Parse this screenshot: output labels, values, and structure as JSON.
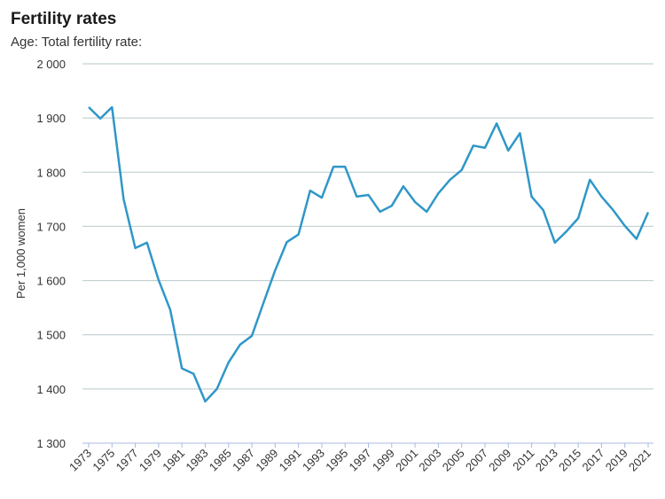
{
  "chart_data": {
    "type": "line",
    "title": "Fertility rates",
    "subtitle": "Age: Total fertility rate:",
    "y_label": "Per 1,000 women",
    "x": [
      1973,
      1974,
      1975,
      1976,
      1977,
      1978,
      1979,
      1980,
      1981,
      1982,
      1983,
      1984,
      1985,
      1986,
      1987,
      1988,
      1989,
      1990,
      1991,
      1992,
      1993,
      1994,
      1995,
      1996,
      1997,
      1998,
      1999,
      2000,
      2001,
      2002,
      2003,
      2004,
      2005,
      2006,
      2007,
      2008,
      2009,
      2010,
      2011,
      2012,
      2013,
      2014,
      2015,
      2016,
      2017,
      2018,
      2019,
      2020,
      2021
    ],
    "series": [
      {
        "name": "Total fertility rate",
        "color": "#2f97c8",
        "values": [
          1920,
          1899,
          1920,
          1750,
          1660,
          1670,
          1601,
          1546,
          1438,
          1428,
          1377,
          1400,
          1449,
          1482,
          1498,
          1559,
          1619,
          1671,
          1685,
          1766,
          1753,
          1810,
          1810,
          1755,
          1758,
          1727,
          1738,
          1774,
          1745,
          1727,
          1761,
          1786,
          1804,
          1849,
          1845,
          1890,
          1840,
          1872,
          1755,
          1730,
          1670,
          1691,
          1715,
          1786,
          1755,
          1730,
          1701,
          1677,
          1726
        ]
      }
    ],
    "xlim": [
      1973,
      2021
    ],
    "xticks": [
      1973,
      1975,
      1977,
      1979,
      1981,
      1983,
      1985,
      1987,
      1989,
      1991,
      1993,
      1995,
      1997,
      1999,
      2001,
      2003,
      2005,
      2007,
      2009,
      2011,
      2013,
      2015,
      2017,
      2019,
      2021
    ],
    "ylim": [
      1300,
      2000
    ],
    "yticks": [
      {
        "value": 1300,
        "label": "1 300"
      },
      {
        "value": 1400,
        "label": "1 400"
      },
      {
        "value": 1500,
        "label": "1 500"
      },
      {
        "value": 1600,
        "label": "1 600"
      },
      {
        "value": 1700,
        "label": "1 700"
      },
      {
        "value": 1800,
        "label": "1 800"
      },
      {
        "value": 1900,
        "label": "1 900"
      },
      {
        "value": 2000,
        "label": "2 000"
      }
    ],
    "grid": true
  }
}
